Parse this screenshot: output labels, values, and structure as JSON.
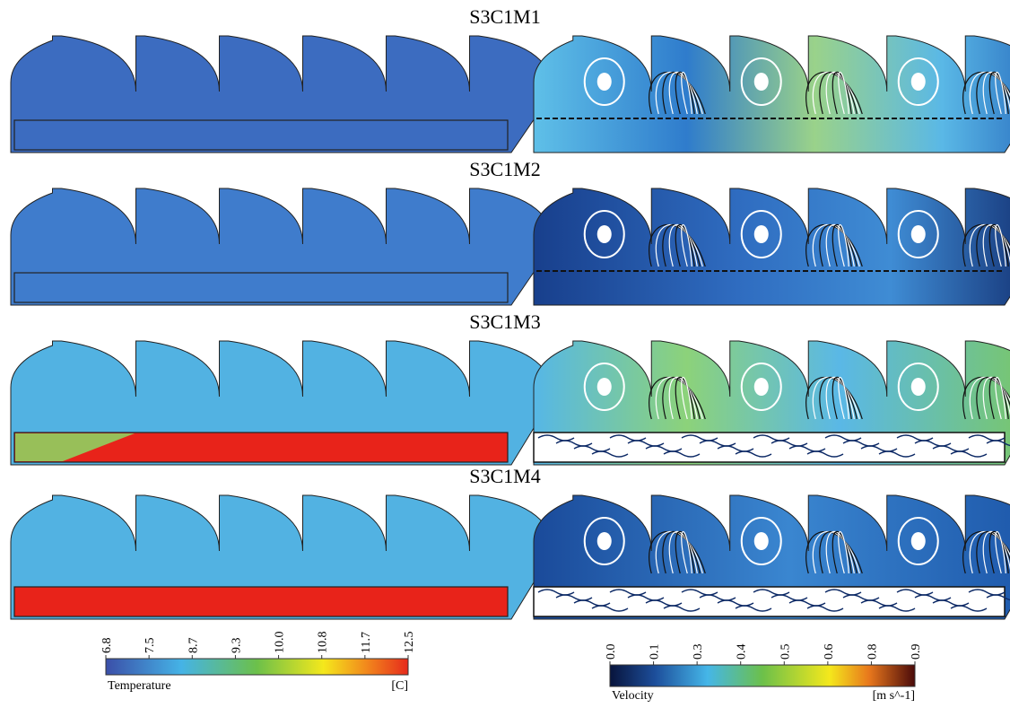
{
  "panels": [
    {
      "title": "S3C1M1"
    },
    {
      "title": "S3C1M2"
    },
    {
      "title": "S3C1M3"
    },
    {
      "title": "S3C1M4"
    }
  ],
  "colorbars": [
    {
      "label": "Temperature",
      "unit": "[C]",
      "ticks": [
        "6.8",
        "7.5",
        "8.7",
        "9.3",
        "10.0",
        "10.8",
        "11.7",
        "12.5"
      ]
    },
    {
      "label": "Velocity",
      "unit": "[m s^-1]",
      "ticks": [
        "0.0",
        "0.1",
        "0.3",
        "0.4",
        "0.5",
        "0.6",
        "0.8",
        "0.9"
      ]
    }
  ]
}
